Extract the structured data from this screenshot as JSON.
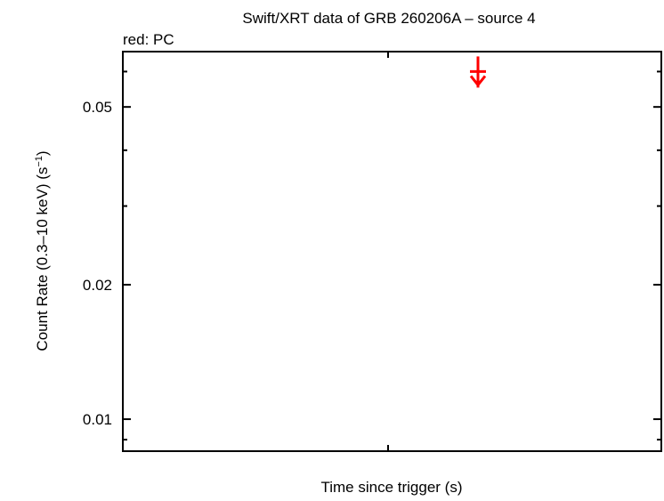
{
  "chart_data": {
    "type": "scatter",
    "title": "Swift/XRT data of GRB 260206A – source 4",
    "subtitle": "red: PC",
    "xlabel": "Time since trigger (s)",
    "ylabel": "Count Rate (0.3–10 keV) (s",
    "ylabel_sup": "−1",
    "ylabel_end": ")",
    "yscale": "log",
    "ylim": [
      0.00848,
      0.0665
    ],
    "y_ticks_major": [
      0.01,
      0.02,
      0.05
    ],
    "y_tick_labels": [
      "0.01",
      "0.02",
      "0.05"
    ],
    "y_ticks_minor": [
      0.009,
      0.03,
      0.04,
      0.06
    ],
    "grid": false,
    "series": [
      {
        "name": "PC",
        "color": "#ff0000",
        "points": [
          {
            "y": 0.06,
            "upper_limit": true
          }
        ]
      }
    ]
  }
}
